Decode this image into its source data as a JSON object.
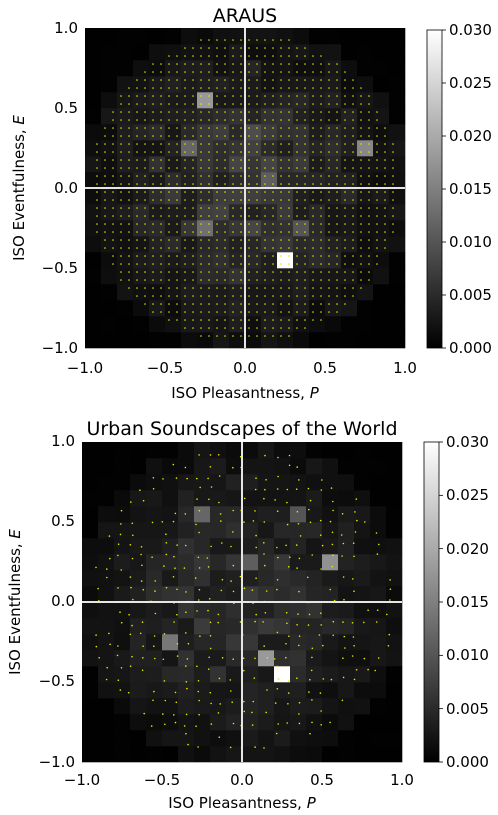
{
  "chart_data": [
    {
      "type": "heatmap",
      "title": "ARAUS",
      "xlabel": "ISO Pleasantness, ",
      "xlabel_var": "P",
      "ylabel": "ISO Eventfulness, ",
      "ylabel_var": "E",
      "xlim": [
        -1.0,
        1.0
      ],
      "ylim": [
        -1.0,
        1.0
      ],
      "xticks": [
        "−1.0",
        "−0.5",
        "0.0",
        "0.5",
        "1.0"
      ],
      "yticks": [
        "−1.0",
        "−0.5",
        "0.0",
        "0.5",
        "1.0"
      ],
      "colorbar": {
        "range": [
          0.0,
          0.03
        ],
        "ticks": [
          "0.000",
          "0.005",
          "0.010",
          "0.015",
          "0.020",
          "0.025",
          "0.030"
        ]
      },
      "grid_bins": 20,
      "point_color": "#e8e800",
      "hotspots": [
        {
          "x": 0.25,
          "y": -0.45,
          "v": 0.03
        },
        {
          "x": -0.25,
          "y": 0.55,
          "v": 0.018
        },
        {
          "x": 0.75,
          "y": 0.25,
          "v": 0.016
        },
        {
          "x": -0.35,
          "y": 0.25,
          "v": 0.012
        },
        {
          "x": 0.15,
          "y": 0.05,
          "v": 0.011
        },
        {
          "x": -0.25,
          "y": -0.25,
          "v": 0.013
        },
        {
          "x": 0.35,
          "y": -0.25,
          "v": 0.01
        },
        {
          "x": 0.05,
          "y": 0.35,
          "v": 0.009
        }
      ],
      "base_density": 0.0065,
      "spread": 0.62
    },
    {
      "type": "heatmap",
      "title": "Urban Soundscapes of the World",
      "xlabel": "ISO Pleasantness, ",
      "xlabel_var": "P",
      "ylabel": "ISO Eventfulness, ",
      "ylabel_var": "E",
      "xlim": [
        -1.0,
        1.0
      ],
      "ylim": [
        -1.0,
        1.0
      ],
      "xticks": [
        "−1.0",
        "−0.5",
        "0.0",
        "0.5",
        "1.0"
      ],
      "yticks": [
        "−1.0",
        "−0.5",
        "0.0",
        "0.5",
        "1.0"
      ],
      "colorbar": {
        "range": [
          0.0,
          0.03
        ],
        "ticks": [
          "0.000",
          "0.005",
          "0.010",
          "0.015",
          "0.020",
          "0.025",
          "0.030"
        ]
      },
      "grid_bins": 20,
      "point_color": "#e8e800",
      "hotspots": [
        {
          "x": 0.25,
          "y": -0.45,
          "v": 0.03
        },
        {
          "x": 0.15,
          "y": -0.35,
          "v": 0.018
        },
        {
          "x": 0.55,
          "y": 0.25,
          "v": 0.017
        },
        {
          "x": -0.45,
          "y": -0.25,
          "v": 0.014
        },
        {
          "x": -0.25,
          "y": 0.55,
          "v": 0.012
        },
        {
          "x": 0.05,
          "y": 0.25,
          "v": 0.011
        },
        {
          "x": 0.35,
          "y": 0.55,
          "v": 0.01
        },
        {
          "x": 0.45,
          "y": -1.0,
          "v": 0.009
        }
      ],
      "base_density": 0.0055,
      "spread": 0.66
    }
  ]
}
